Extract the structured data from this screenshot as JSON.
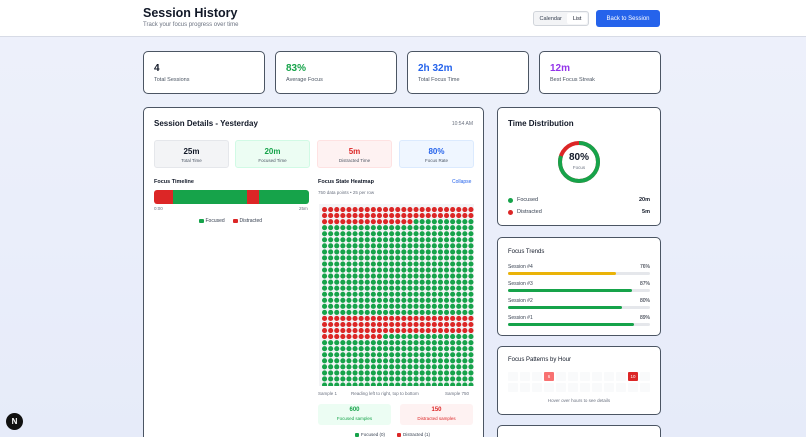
{
  "header": {
    "title": "Session History",
    "subtitle": "Track your focus progress over time",
    "view_toggle": [
      "Calendar",
      "List"
    ],
    "back_button": "Back to Session"
  },
  "stats": [
    {
      "value": "4",
      "label": "Total Sessions",
      "color": "#111827"
    },
    {
      "value": "83%",
      "label": "Average Focus",
      "color": "#16a34a"
    },
    {
      "value": "2h 32m",
      "label": "Total Focus Time",
      "color": "#2563eb"
    },
    {
      "value": "12m",
      "label": "Best Focus Streak",
      "color": "#9333ea"
    }
  ],
  "details": {
    "title": "Session Details - Yesterday",
    "time": "10:54 AM",
    "summary": [
      {
        "value": "25m",
        "label": "Total Time",
        "color": "#111827",
        "bg": "#f3f4f6"
      },
      {
        "value": "20m",
        "label": "Focused Time",
        "color": "#16a34a",
        "bg": "#ecfdf3"
      },
      {
        "value": "5m",
        "label": "Distracted Time",
        "color": "#dc2626",
        "bg": "#fef2f2"
      },
      {
        "value": "80%",
        "label": "Focus Rate",
        "color": "#2563eb",
        "bg": "#eff6ff"
      }
    ],
    "timeline": {
      "label": "Focus Timeline",
      "start": "0:00",
      "end": "25m",
      "segments": [
        {
          "state": "distracted",
          "fraction": 0.12
        },
        {
          "state": "focused",
          "fraction": 0.48
        },
        {
          "state": "distracted",
          "fraction": 0.08
        },
        {
          "state": "focused",
          "fraction": 0.32
        }
      ],
      "legend": [
        "Focused",
        "Distracted"
      ]
    },
    "heatmap": {
      "label": "Focus State Heatmap",
      "collapse": "Collapse",
      "info": "750 data points • 25 per row",
      "sample_start": "Sample 1",
      "reading_note": "Reading left to right, top to bottom",
      "sample_end": "Sample 750",
      "focused_count": "600",
      "focused_label": "Focused samples",
      "distracted_count": "150",
      "distracted_label": "Distracted samples",
      "legend_focused": "Focused (0)",
      "legend_distracted": "Distracted (1)"
    }
  },
  "distribution": {
    "title": "Time Distribution",
    "percent": "80%",
    "center_label": "Focus",
    "focus_fraction": 0.8,
    "rows": [
      {
        "label": "Focused",
        "value": "20m",
        "color": "#16a34a"
      },
      {
        "label": "Distracted",
        "value": "5m",
        "color": "#dc2626"
      }
    ]
  },
  "trends": {
    "title": "Focus Trends",
    "items": [
      {
        "name": "Session #4",
        "pct": "76%",
        "fraction": 0.76,
        "color": "#eab308"
      },
      {
        "name": "Session #3",
        "pct": "87%",
        "fraction": 0.87,
        "color": "#16a34a"
      },
      {
        "name": "Session #2",
        "pct": "80%",
        "fraction": 0.8,
        "color": "#16a34a"
      },
      {
        "name": "Session #1",
        "pct": "89%",
        "fraction": 0.89,
        "color": "#16a34a"
      }
    ]
  },
  "patterns": {
    "title": "Focus Patterns by Hour",
    "badges": [
      {
        "text": "6",
        "color": "#f87171"
      },
      {
        "text": "10",
        "color": "#dc2626"
      }
    ],
    "hint": "Hover over hours to see details"
  },
  "colors": {
    "focused": "#16a34a",
    "distracted": "#dc2626",
    "accent": "#2563eb"
  },
  "fab_icon": "next-logo-icon"
}
